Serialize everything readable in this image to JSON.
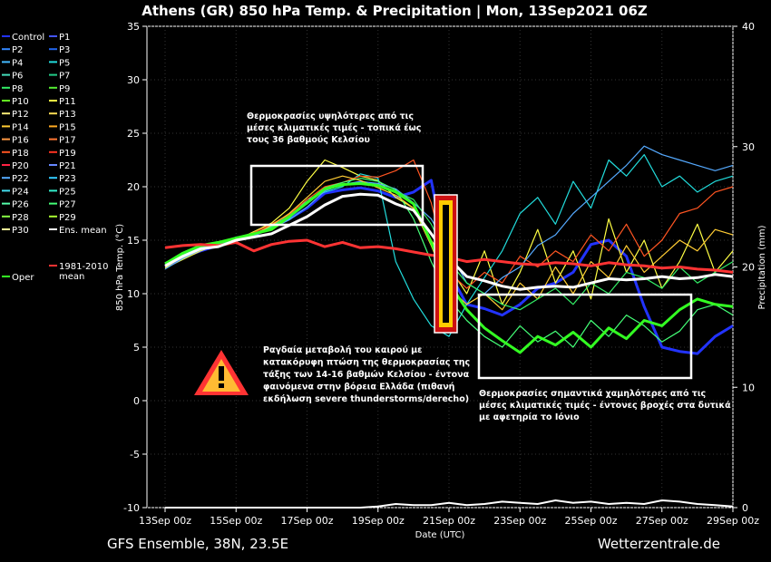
{
  "title": "Athens  (GR)  850 hPa Temp. & Precipitation | Mon, 13Sep2021 06Z",
  "footer": {
    "left": "GFS Ensemble, 38N, 23.5E",
    "right": "Wetterzentrale.de"
  },
  "chart_data": {
    "type": "line",
    "xlabel": "Date (UTC)",
    "ylabel": "850 hPa Temp. (°C)",
    "y2label": "Precipitation (mm)",
    "x_ticks": [
      "13Sep 00z",
      "15Sep 00z",
      "17Sep 00z",
      "19Sep 00z",
      "21Sep 00z",
      "23Sep 00z",
      "25Sep 00z",
      "27Sep 00z",
      "29Sep 00z"
    ],
    "x_range_days": [
      0,
      16
    ],
    "y_ticks": [
      -10,
      -5,
      0,
      5,
      10,
      15,
      20,
      25,
      30,
      35
    ],
    "ylim": [
      -10,
      35
    ],
    "y2_ticks": [
      0,
      10,
      20,
      30,
      40
    ],
    "y2lim": [
      0,
      40
    ],
    "legend": {
      "placement": "left",
      "entries": [
        {
          "name": "Control",
          "color": "#2233ff"
        },
        {
          "name": "P1",
          "color": "#4455ff"
        },
        {
          "name": "P2",
          "color": "#3388ff"
        },
        {
          "name": "P3",
          "color": "#2266ee"
        },
        {
          "name": "P4",
          "color": "#44bbff"
        },
        {
          "name": "P5",
          "color": "#22dddd"
        },
        {
          "name": "P6",
          "color": "#44ddbb"
        },
        {
          "name": "P7",
          "color": "#22cc88"
        },
        {
          "name": "P8",
          "color": "#33ee66"
        },
        {
          "name": "P9",
          "color": "#55ee33"
        },
        {
          "name": "P10",
          "color": "#66ff22"
        },
        {
          "name": "P11",
          "color": "#ffff44"
        },
        {
          "name": "P12",
          "color": "#ffee77"
        },
        {
          "name": "P13",
          "color": "#ffdd55"
        },
        {
          "name": "P14",
          "color": "#ffcc33"
        },
        {
          "name": "P15",
          "color": "#ffaa22"
        },
        {
          "name": "P16",
          "color": "#ff9944"
        },
        {
          "name": "P17",
          "color": "#ff7733"
        },
        {
          "name": "P18",
          "color": "#ff5522"
        },
        {
          "name": "P19",
          "color": "#ff3322"
        },
        {
          "name": "P20",
          "color": "#ff2244"
        },
        {
          "name": "P21",
          "color": "#6688ff"
        },
        {
          "name": "P22",
          "color": "#55aaff"
        },
        {
          "name": "P23",
          "color": "#33ccff"
        },
        {
          "name": "P24",
          "color": "#44ddee"
        },
        {
          "name": "P25",
          "color": "#33eecc"
        },
        {
          "name": "P26",
          "color": "#55ffaa"
        },
        {
          "name": "P27",
          "color": "#44ff77"
        },
        {
          "name": "P28",
          "color": "#88ff44"
        },
        {
          "name": "P29",
          "color": "#aaff33"
        },
        {
          "name": "P30",
          "color": "#ffff99"
        },
        {
          "name": "Ens. mean",
          "color": "#ffffff"
        },
        {
          "name": "Oper",
          "color": "#33ff22"
        },
        {
          "name": "1981-2010 mean",
          "label_lines": [
            "1981-2010",
            "mean"
          ],
          "color": "#ff3333"
        }
      ]
    },
    "series": [
      {
        "name": "Ens. mean",
        "color": "#ffffff",
        "x": [
          0,
          0.5,
          1,
          1.5,
          2,
          2.5,
          3,
          3.5,
          4,
          4.5,
          5,
          5.5,
          6,
          6.5,
          7,
          7.5,
          8,
          8.5,
          9,
          9.5,
          10,
          10.5,
          11,
          11.5,
          12,
          12.5,
          13,
          13.5,
          14,
          14.5,
          15,
          15.5,
          16
        ],
        "values": [
          12.6,
          13.5,
          14.2,
          14.4,
          15,
          15.3,
          15.6,
          16.4,
          17.2,
          18.3,
          19.1,
          19.3,
          19.2,
          18.4,
          17.8,
          15.6,
          13.3,
          11.6,
          11.2,
          10.7,
          10.4,
          10.6,
          10.7,
          10.6,
          11.0,
          11.4,
          11.3,
          11.4,
          11.6,
          11.4,
          11.5,
          11.8,
          11.6
        ]
      },
      {
        "name": "Oper",
        "color": "#33ff22",
        "x": [
          0,
          0.5,
          1,
          1.5,
          2,
          2.5,
          3,
          3.5,
          4,
          4.5,
          5,
          5.5,
          6,
          6.5,
          7,
          7.5,
          8,
          8.5,
          9,
          9.5,
          10,
          10.5,
          11,
          11.5,
          12,
          12.5,
          13,
          13.5,
          14,
          14.5,
          15,
          15.5,
          16
        ],
        "values": [
          12.8,
          13.8,
          14.5,
          14.8,
          15.2,
          15.6,
          16.0,
          17.2,
          18.5,
          19.8,
          20.2,
          20.3,
          20.1,
          19.5,
          18.4,
          14.8,
          11.0,
          8.5,
          6.8,
          5.6,
          4.5,
          6.0,
          5.2,
          6.4,
          5.0,
          6.8,
          5.8,
          7.5,
          7.0,
          8.5,
          9.5,
          9.0,
          8.8
        ]
      },
      {
        "name": "1981-2010 mean",
        "color": "#ff3333",
        "x": [
          0,
          0.5,
          1,
          1.5,
          2,
          2.5,
          3,
          3.5,
          4,
          4.5,
          5,
          5.5,
          6,
          6.5,
          7,
          7.5,
          8,
          8.5,
          9,
          9.5,
          10,
          10.5,
          11,
          11.5,
          12,
          12.5,
          13,
          13.5,
          14,
          14.5,
          15,
          15.5,
          16
        ],
        "values": [
          14.3,
          14.5,
          14.6,
          14.5,
          14.8,
          14.0,
          14.6,
          14.9,
          15.0,
          14.4,
          14.8,
          14.3,
          14.4,
          14.2,
          13.9,
          13.6,
          13.4,
          13.0,
          13.2,
          13.0,
          12.8,
          12.7,
          12.9,
          12.8,
          12.6,
          12.9,
          12.7,
          12.6,
          12.4,
          12.5,
          12.3,
          12.2,
          12.0
        ]
      },
      {
        "name": "Control",
        "color": "#2233ff",
        "x": [
          0,
          0.5,
          1,
          1.5,
          2,
          2.5,
          3,
          3.5,
          4,
          4.5,
          5,
          5.5,
          6,
          6.5,
          7,
          7.5,
          8,
          8.5,
          9,
          9.5,
          10,
          10.5,
          11,
          11.5,
          12,
          12.5,
          13,
          13.5,
          14,
          14.5,
          15,
          15.5,
          16
        ],
        "values": [
          12.5,
          13.4,
          14.0,
          14.5,
          15.1,
          15.5,
          16.2,
          17.0,
          18.0,
          19.4,
          19.7,
          19.9,
          19.6,
          19.0,
          19.5,
          20.6,
          12.0,
          9.0,
          8.6,
          8.0,
          9.0,
          10.5,
          11.0,
          12.0,
          14.6,
          15.0,
          13.5,
          8.8,
          5.0,
          4.6,
          4.4,
          6.0,
          7.0
        ]
      },
      {
        "name": "P11",
        "color": "#ffff44",
        "x": [
          0,
          0.5,
          1,
          1.5,
          2,
          2.5,
          3,
          3.5,
          4,
          4.5,
          5,
          5.5,
          6,
          6.5,
          7,
          7.5,
          8,
          8.5,
          9,
          9.5,
          10,
          10.5,
          11,
          11.5,
          12,
          12.5,
          13,
          13.5,
          14,
          14.5,
          15,
          15.5,
          16
        ],
        "values": [
          12.4,
          13.2,
          14.0,
          14.6,
          15.0,
          15.8,
          16.6,
          18.0,
          20.5,
          22.5,
          21.8,
          21.0,
          20.6,
          19.0,
          18.0,
          15.0,
          12.5,
          10.0,
          14.0,
          9.0,
          12.0,
          16.0,
          11.0,
          14.0,
          9.5,
          17.0,
          12.0,
          15.0,
          10.5,
          13.0,
          16.5,
          12.0,
          14.0
        ]
      },
      {
        "name": "P5",
        "color": "#22dddd",
        "x": [
          0,
          0.5,
          1,
          1.5,
          2,
          2.5,
          3,
          3.5,
          4,
          4.5,
          5,
          5.5,
          6,
          6.5,
          7,
          7.5,
          8,
          8.5,
          9,
          9.5,
          10,
          10.5,
          11,
          11.5,
          12,
          12.5,
          13,
          13.5,
          14,
          14.5,
          15,
          15.5,
          16
        ],
        "values": [
          12.7,
          13.6,
          14.3,
          14.6,
          15.3,
          15.4,
          16.2,
          17.0,
          18.8,
          19.5,
          20.0,
          21.2,
          20.8,
          13.0,
          9.5,
          7.0,
          6.0,
          9.0,
          11.5,
          14.0,
          17.5,
          19.0,
          16.5,
          20.5,
          18.0,
          22.5,
          21.0,
          23.0,
          20.0,
          21.0,
          19.5,
          20.5,
          21.0
        ]
      },
      {
        "name": "P18",
        "color": "#ff5522",
        "x": [
          0,
          0.5,
          1,
          1.5,
          2,
          2.5,
          3,
          3.5,
          4,
          4.5,
          5,
          5.5,
          6,
          6.5,
          7,
          7.5,
          8,
          8.5,
          9,
          9.5,
          10,
          10.5,
          11,
          11.5,
          12,
          12.5,
          13,
          13.5,
          14,
          14.5,
          15,
          15.5,
          16
        ],
        "values": [
          12.6,
          13.5,
          14.2,
          14.8,
          15.2,
          15.7,
          16.5,
          17.4,
          18.8,
          20.0,
          20.4,
          21.0,
          20.9,
          21.5,
          22.5,
          18.5,
          12.0,
          10.5,
          12.0,
          11.0,
          13.5,
          12.5,
          14.0,
          13.0,
          15.5,
          14.0,
          16.5,
          13.5,
          15.0,
          17.5,
          18.0,
          19.5,
          20.0
        ]
      },
      {
        "name": "P22",
        "color": "#55aaff",
        "x": [
          0,
          0.5,
          1,
          1.5,
          2,
          2.5,
          3,
          3.5,
          4,
          4.5,
          5,
          5.5,
          6,
          6.5,
          7,
          7.5,
          8,
          8.5,
          9,
          9.5,
          10,
          10.5,
          11,
          11.5,
          12,
          12.5,
          13,
          13.5,
          14,
          14.5,
          15,
          15.5,
          16
        ],
        "values": [
          12.3,
          13.3,
          14.1,
          14.4,
          14.9,
          15.4,
          16.1,
          16.9,
          18.1,
          19.6,
          20.2,
          20.5,
          20.3,
          19.8,
          18.5,
          17.0,
          14.0,
          11.0,
          10.0,
          11.5,
          12.5,
          14.5,
          15.5,
          17.5,
          19.0,
          20.5,
          22.0,
          23.8,
          23.0,
          22.5,
          22.0,
          21.5,
          22.0
        ]
      },
      {
        "name": "P27",
        "color": "#44ff77",
        "x": [
          0,
          0.5,
          1,
          1.5,
          2,
          2.5,
          3,
          3.5,
          4,
          4.5,
          5,
          5.5,
          6,
          6.5,
          7,
          7.5,
          8,
          8.5,
          9,
          9.5,
          10,
          10.5,
          11,
          11.5,
          12,
          12.5,
          13,
          13.5,
          14,
          14.5,
          15,
          15.5,
          16
        ],
        "values": [
          12.9,
          13.7,
          14.4,
          14.7,
          15.1,
          15.6,
          16.3,
          17.3,
          18.6,
          19.9,
          20.4,
          20.8,
          20.5,
          19.7,
          17.0,
          13.0,
          9.5,
          7.5,
          6.0,
          5.0,
          7.0,
          5.5,
          6.5,
          5.0,
          7.5,
          6.0,
          8.0,
          7.0,
          5.5,
          6.5,
          8.5,
          9.0,
          8.0
        ]
      },
      {
        "name": "P14",
        "color": "#ffcc33",
        "x": [
          0,
          0.5,
          1,
          1.5,
          2,
          2.5,
          3,
          3.5,
          4,
          4.5,
          5,
          5.5,
          6,
          6.5,
          7,
          7.5,
          8,
          8.5,
          9,
          9.5,
          10,
          10.5,
          11,
          11.5,
          12,
          12.5,
          13,
          13.5,
          14,
          14.5,
          15,
          15.5,
          16
        ],
        "values": [
          12.5,
          13.4,
          14.2,
          14.5,
          15.0,
          15.5,
          16.4,
          17.5,
          19.0,
          20.5,
          21.0,
          20.6,
          19.9,
          19.2,
          18.0,
          14.5,
          10.5,
          9.0,
          10.0,
          8.5,
          11.0,
          9.5,
          12.5,
          10.0,
          13.0,
          11.5,
          14.5,
          12.0,
          13.5,
          15.0,
          14.0,
          16.0,
          15.5
        ]
      },
      {
        "name": "P8",
        "color": "#33ee66",
        "x": [
          0,
          0.5,
          1,
          1.5,
          2,
          2.5,
          3,
          3.5,
          4,
          4.5,
          5,
          5.5,
          6,
          6.5,
          7,
          7.5,
          8,
          8.5,
          9,
          9.5,
          10,
          10.5,
          11,
          11.5,
          12,
          12.5,
          13,
          13.5,
          14,
          14.5,
          15,
          15.5,
          16
        ],
        "values": [
          12.7,
          13.5,
          14.3,
          14.6,
          15.1,
          15.5,
          16.2,
          17.1,
          18.4,
          19.7,
          20.1,
          20.4,
          20.2,
          19.6,
          18.8,
          16.5,
          13.0,
          11.0,
          10.0,
          9.0,
          8.5,
          9.5,
          10.5,
          9.0,
          11.0,
          10.0,
          12.0,
          11.5,
          10.5,
          12.5,
          11.0,
          12.0,
          13.0
        ]
      }
    ],
    "precipitation": {
      "name": "Ens. mean precipitation",
      "x": [
        0,
        1,
        2,
        3,
        4,
        5,
        5.5,
        6,
        6.5,
        7,
        7.5,
        8,
        8.5,
        9,
        9.5,
        10,
        10.5,
        11,
        11.5,
        12,
        12.5,
        13,
        13.5,
        14,
        14.5,
        15,
        15.5,
        16
      ],
      "values": [
        0,
        0,
        0,
        0,
        0,
        0,
        0,
        0.1,
        0.3,
        0.2,
        0.2,
        0.4,
        0.2,
        0.3,
        0.5,
        0.4,
        0.3,
        0.6,
        0.4,
        0.5,
        0.3,
        0.4,
        0.3,
        0.6,
        0.5,
        0.3,
        0.2,
        0.1
      ]
    },
    "annotations": [
      {
        "text": [
          "Θερμοκρασίες υψηλότερες από τις",
          "μέσες κλιματικές τιμές - τοπικά έως",
          "τους 36 βαθμούς Κελσίου"
        ]
      },
      {
        "text": [
          "Ραγδαία μεταβολή του καιρού με",
          "κατακόρυφη πτώση της θερμοκρασίας της",
          "τάξης των 14-16 βαθμών Κελσίου - έντονα",
          "φαινόμενα στην βόρεια Ελλάδα (πιθανή",
          "εκδήλωση severe thunderstorms/derecho)"
        ]
      },
      {
        "text": [
          "Θερμοκρασίες σημαντικά χαμηλότερες από τις",
          "μέσες κλιματικές τιμές - έντονες βροχές στα δυτικά",
          "με αφετηρία το Ιόνιο"
        ]
      }
    ]
  }
}
